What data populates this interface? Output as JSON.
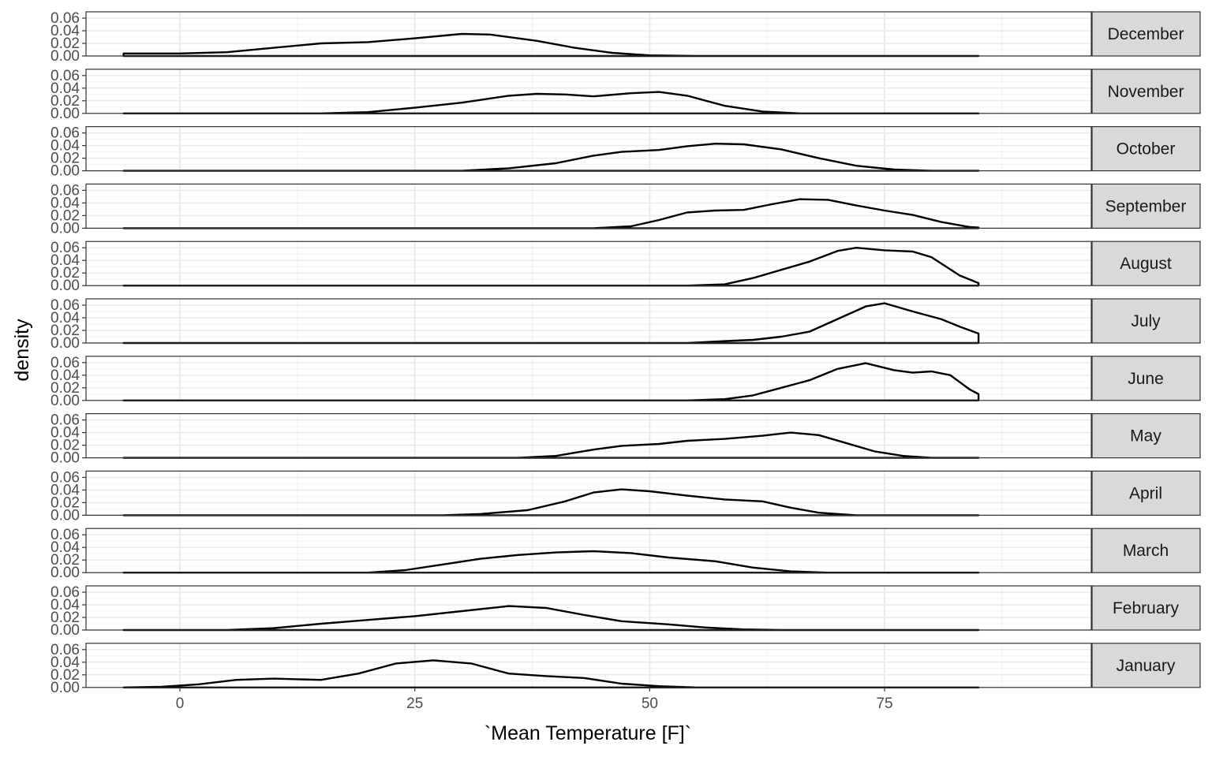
{
  "chart_data": {
    "type": "area",
    "facet_layout": "rows",
    "strip_position": "right",
    "xlabel": "`Mean Temperature [F]`",
    "ylabel": "density",
    "xlim": [
      -10,
      97
    ],
    "ylim": [
      0,
      0.07
    ],
    "x_ticks": [
      0,
      25,
      50,
      75
    ],
    "x_tick_labels": [
      "0",
      "25",
      "50",
      "75"
    ],
    "y_ticks": [
      0,
      0.02,
      0.04,
      0.06
    ],
    "y_tick_labels": [
      "0.00",
      "0.02",
      "0.04",
      "0.06"
    ],
    "grid": true,
    "line_color": "#000000",
    "strip_fill": "#d9d9d9",
    "panels": [
      {
        "label": "December",
        "points": [
          [
            -6,
            0.004
          ],
          [
            0,
            0.004
          ],
          [
            5,
            0.006
          ],
          [
            10,
            0.013
          ],
          [
            15,
            0.02
          ],
          [
            20,
            0.022
          ],
          [
            25,
            0.028
          ],
          [
            30,
            0.035
          ],
          [
            33,
            0.034
          ],
          [
            38,
            0.024
          ],
          [
            42,
            0.013
          ],
          [
            46,
            0.005
          ],
          [
            50,
            0.001
          ],
          [
            55,
            0
          ],
          [
            85,
            0
          ]
        ]
      },
      {
        "label": "November",
        "points": [
          [
            -6,
            0
          ],
          [
            15,
            0
          ],
          [
            20,
            0.002
          ],
          [
            25,
            0.009
          ],
          [
            30,
            0.017
          ],
          [
            35,
            0.028
          ],
          [
            38,
            0.031
          ],
          [
            41,
            0.03
          ],
          [
            44,
            0.027
          ],
          [
            48,
            0.032
          ],
          [
            51,
            0.034
          ],
          [
            54,
            0.028
          ],
          [
            58,
            0.012
          ],
          [
            62,
            0.003
          ],
          [
            66,
            0
          ],
          [
            85,
            0
          ]
        ]
      },
      {
        "label": "October",
        "points": [
          [
            -6,
            0
          ],
          [
            30,
            0
          ],
          [
            35,
            0.004
          ],
          [
            40,
            0.012
          ],
          [
            44,
            0.024
          ],
          [
            47,
            0.03
          ],
          [
            51,
            0.033
          ],
          [
            54,
            0.039
          ],
          [
            57,
            0.043
          ],
          [
            60,
            0.042
          ],
          [
            64,
            0.034
          ],
          [
            68,
            0.02
          ],
          [
            72,
            0.008
          ],
          [
            76,
            0.002
          ],
          [
            80,
            0
          ],
          [
            85,
            0
          ]
        ]
      },
      {
        "label": "September",
        "points": [
          [
            -6,
            0
          ],
          [
            44,
            0
          ],
          [
            48,
            0.003
          ],
          [
            51,
            0.013
          ],
          [
            54,
            0.025
          ],
          [
            57,
            0.028
          ],
          [
            60,
            0.029
          ],
          [
            63,
            0.038
          ],
          [
            66,
            0.046
          ],
          [
            69,
            0.045
          ],
          [
            72,
            0.036
          ],
          [
            75,
            0.028
          ],
          [
            78,
            0.021
          ],
          [
            81,
            0.01
          ],
          [
            84,
            0.002
          ],
          [
            85,
            0.001
          ]
        ]
      },
      {
        "label": "August",
        "points": [
          [
            -6,
            0
          ],
          [
            54,
            0
          ],
          [
            58,
            0.002
          ],
          [
            61,
            0.012
          ],
          [
            64,
            0.025
          ],
          [
            67,
            0.038
          ],
          [
            70,
            0.055
          ],
          [
            72,
            0.06
          ],
          [
            75,
            0.056
          ],
          [
            78,
            0.054
          ],
          [
            80,
            0.045
          ],
          [
            83,
            0.016
          ],
          [
            85,
            0.004
          ]
        ]
      },
      {
        "label": "July",
        "points": [
          [
            -6,
            0
          ],
          [
            54,
            0
          ],
          [
            58,
            0.003
          ],
          [
            61,
            0.005
          ],
          [
            64,
            0.01
          ],
          [
            67,
            0.018
          ],
          [
            70,
            0.038
          ],
          [
            73,
            0.058
          ],
          [
            75,
            0.063
          ],
          [
            78,
            0.05
          ],
          [
            81,
            0.038
          ],
          [
            83,
            0.026
          ],
          [
            85,
            0.015
          ]
        ]
      },
      {
        "label": "June",
        "points": [
          [
            -6,
            0
          ],
          [
            54,
            0
          ],
          [
            58,
            0.002
          ],
          [
            61,
            0.008
          ],
          [
            64,
            0.02
          ],
          [
            67,
            0.032
          ],
          [
            70,
            0.05
          ],
          [
            73,
            0.059
          ],
          [
            76,
            0.048
          ],
          [
            78,
            0.044
          ],
          [
            80,
            0.046
          ],
          [
            82,
            0.04
          ],
          [
            84,
            0.018
          ],
          [
            85,
            0.01
          ]
        ]
      },
      {
        "label": "May",
        "points": [
          [
            -6,
            0
          ],
          [
            36,
            0
          ],
          [
            40,
            0.003
          ],
          [
            44,
            0.013
          ],
          [
            47,
            0.019
          ],
          [
            51,
            0.022
          ],
          [
            54,
            0.027
          ],
          [
            58,
            0.03
          ],
          [
            62,
            0.035
          ],
          [
            65,
            0.04
          ],
          [
            68,
            0.036
          ],
          [
            71,
            0.023
          ],
          [
            74,
            0.01
          ],
          [
            77,
            0.003
          ],
          [
            80,
            0
          ],
          [
            85,
            0
          ]
        ]
      },
      {
        "label": "April",
        "points": [
          [
            -6,
            0
          ],
          [
            28,
            0
          ],
          [
            32,
            0.002
          ],
          [
            37,
            0.008
          ],
          [
            41,
            0.022
          ],
          [
            44,
            0.036
          ],
          [
            47,
            0.041
          ],
          [
            50,
            0.038
          ],
          [
            54,
            0.031
          ],
          [
            58,
            0.025
          ],
          [
            62,
            0.022
          ],
          [
            65,
            0.012
          ],
          [
            68,
            0.004
          ],
          [
            72,
            0
          ],
          [
            85,
            0
          ]
        ]
      },
      {
        "label": "March",
        "points": [
          [
            -6,
            0
          ],
          [
            20,
            0
          ],
          [
            24,
            0.004
          ],
          [
            28,
            0.013
          ],
          [
            32,
            0.022
          ],
          [
            36,
            0.028
          ],
          [
            40,
            0.032
          ],
          [
            44,
            0.034
          ],
          [
            48,
            0.031
          ],
          [
            52,
            0.024
          ],
          [
            57,
            0.018
          ],
          [
            61,
            0.008
          ],
          [
            65,
            0.002
          ],
          [
            69,
            0
          ],
          [
            85,
            0
          ]
        ]
      },
      {
        "label": "February",
        "points": [
          [
            -6,
            0
          ],
          [
            5,
            0
          ],
          [
            10,
            0.003
          ],
          [
            15,
            0.01
          ],
          [
            20,
            0.016
          ],
          [
            25,
            0.022
          ],
          [
            30,
            0.03
          ],
          [
            35,
            0.038
          ],
          [
            39,
            0.035
          ],
          [
            43,
            0.024
          ],
          [
            47,
            0.014
          ],
          [
            52,
            0.009
          ],
          [
            56,
            0.004
          ],
          [
            60,
            0.001
          ],
          [
            64,
            0
          ],
          [
            85,
            0
          ]
        ]
      },
      {
        "label": "January",
        "points": [
          [
            -6,
            0
          ],
          [
            -2,
            0.001
          ],
          [
            2,
            0.005
          ],
          [
            6,
            0.012
          ],
          [
            10,
            0.014
          ],
          [
            15,
            0.012
          ],
          [
            19,
            0.022
          ],
          [
            23,
            0.038
          ],
          [
            27,
            0.043
          ],
          [
            31,
            0.038
          ],
          [
            35,
            0.022
          ],
          [
            39,
            0.018
          ],
          [
            43,
            0.015
          ],
          [
            47,
            0.006
          ],
          [
            51,
            0.002
          ],
          [
            55,
            0
          ],
          [
            85,
            0
          ]
        ]
      }
    ]
  }
}
